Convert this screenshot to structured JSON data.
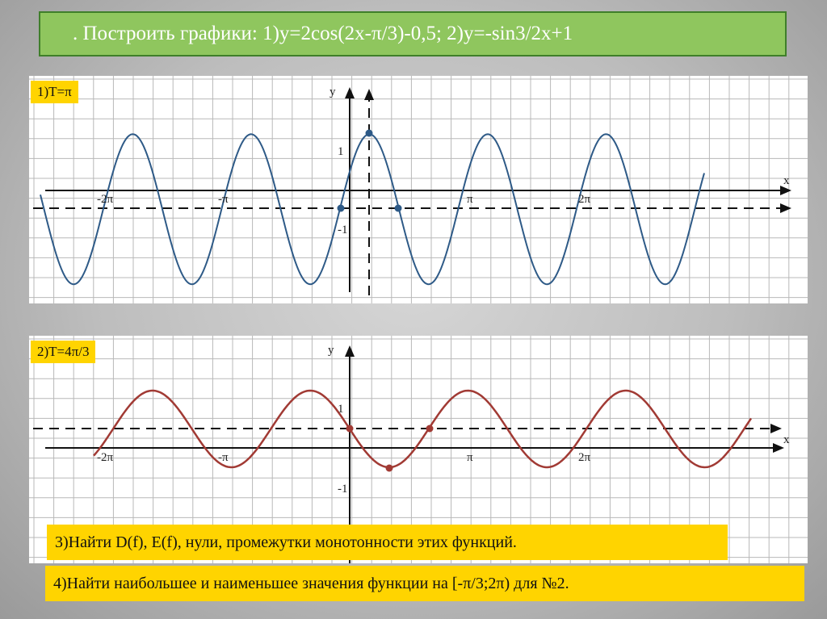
{
  "title": ". Построить графики: 1)у=2cos(2x-π/3)-0,5;  2)у=-sin3/2x+1",
  "graph1": {
    "tag": "1)T=π",
    "axis_y": "y",
    "axis_x": "x",
    "ticks": {
      "neg2pi": "-2π",
      "negpi": "-π",
      "pi": "π",
      "twopi": "2π",
      "one": "1",
      "neg_one": "-1"
    },
    "color": "#2e5a87"
  },
  "graph2": {
    "tag": "2)T=4π/3",
    "axis_y": "y",
    "axis_x": "x",
    "ticks": {
      "neg2pi": "-2π",
      "negpi": "-π",
      "pi": "π",
      "twopi": "2π",
      "one": "1",
      "neg_one": "-1"
    },
    "color": "#a13a34"
  },
  "task3": "3)Найти D(f), E(f), нули, промежутки монотонности этих функций.",
  "task4": "4)Найти наибольшее и наименьшее значения функции на [-π/3;2π) для №2."
}
